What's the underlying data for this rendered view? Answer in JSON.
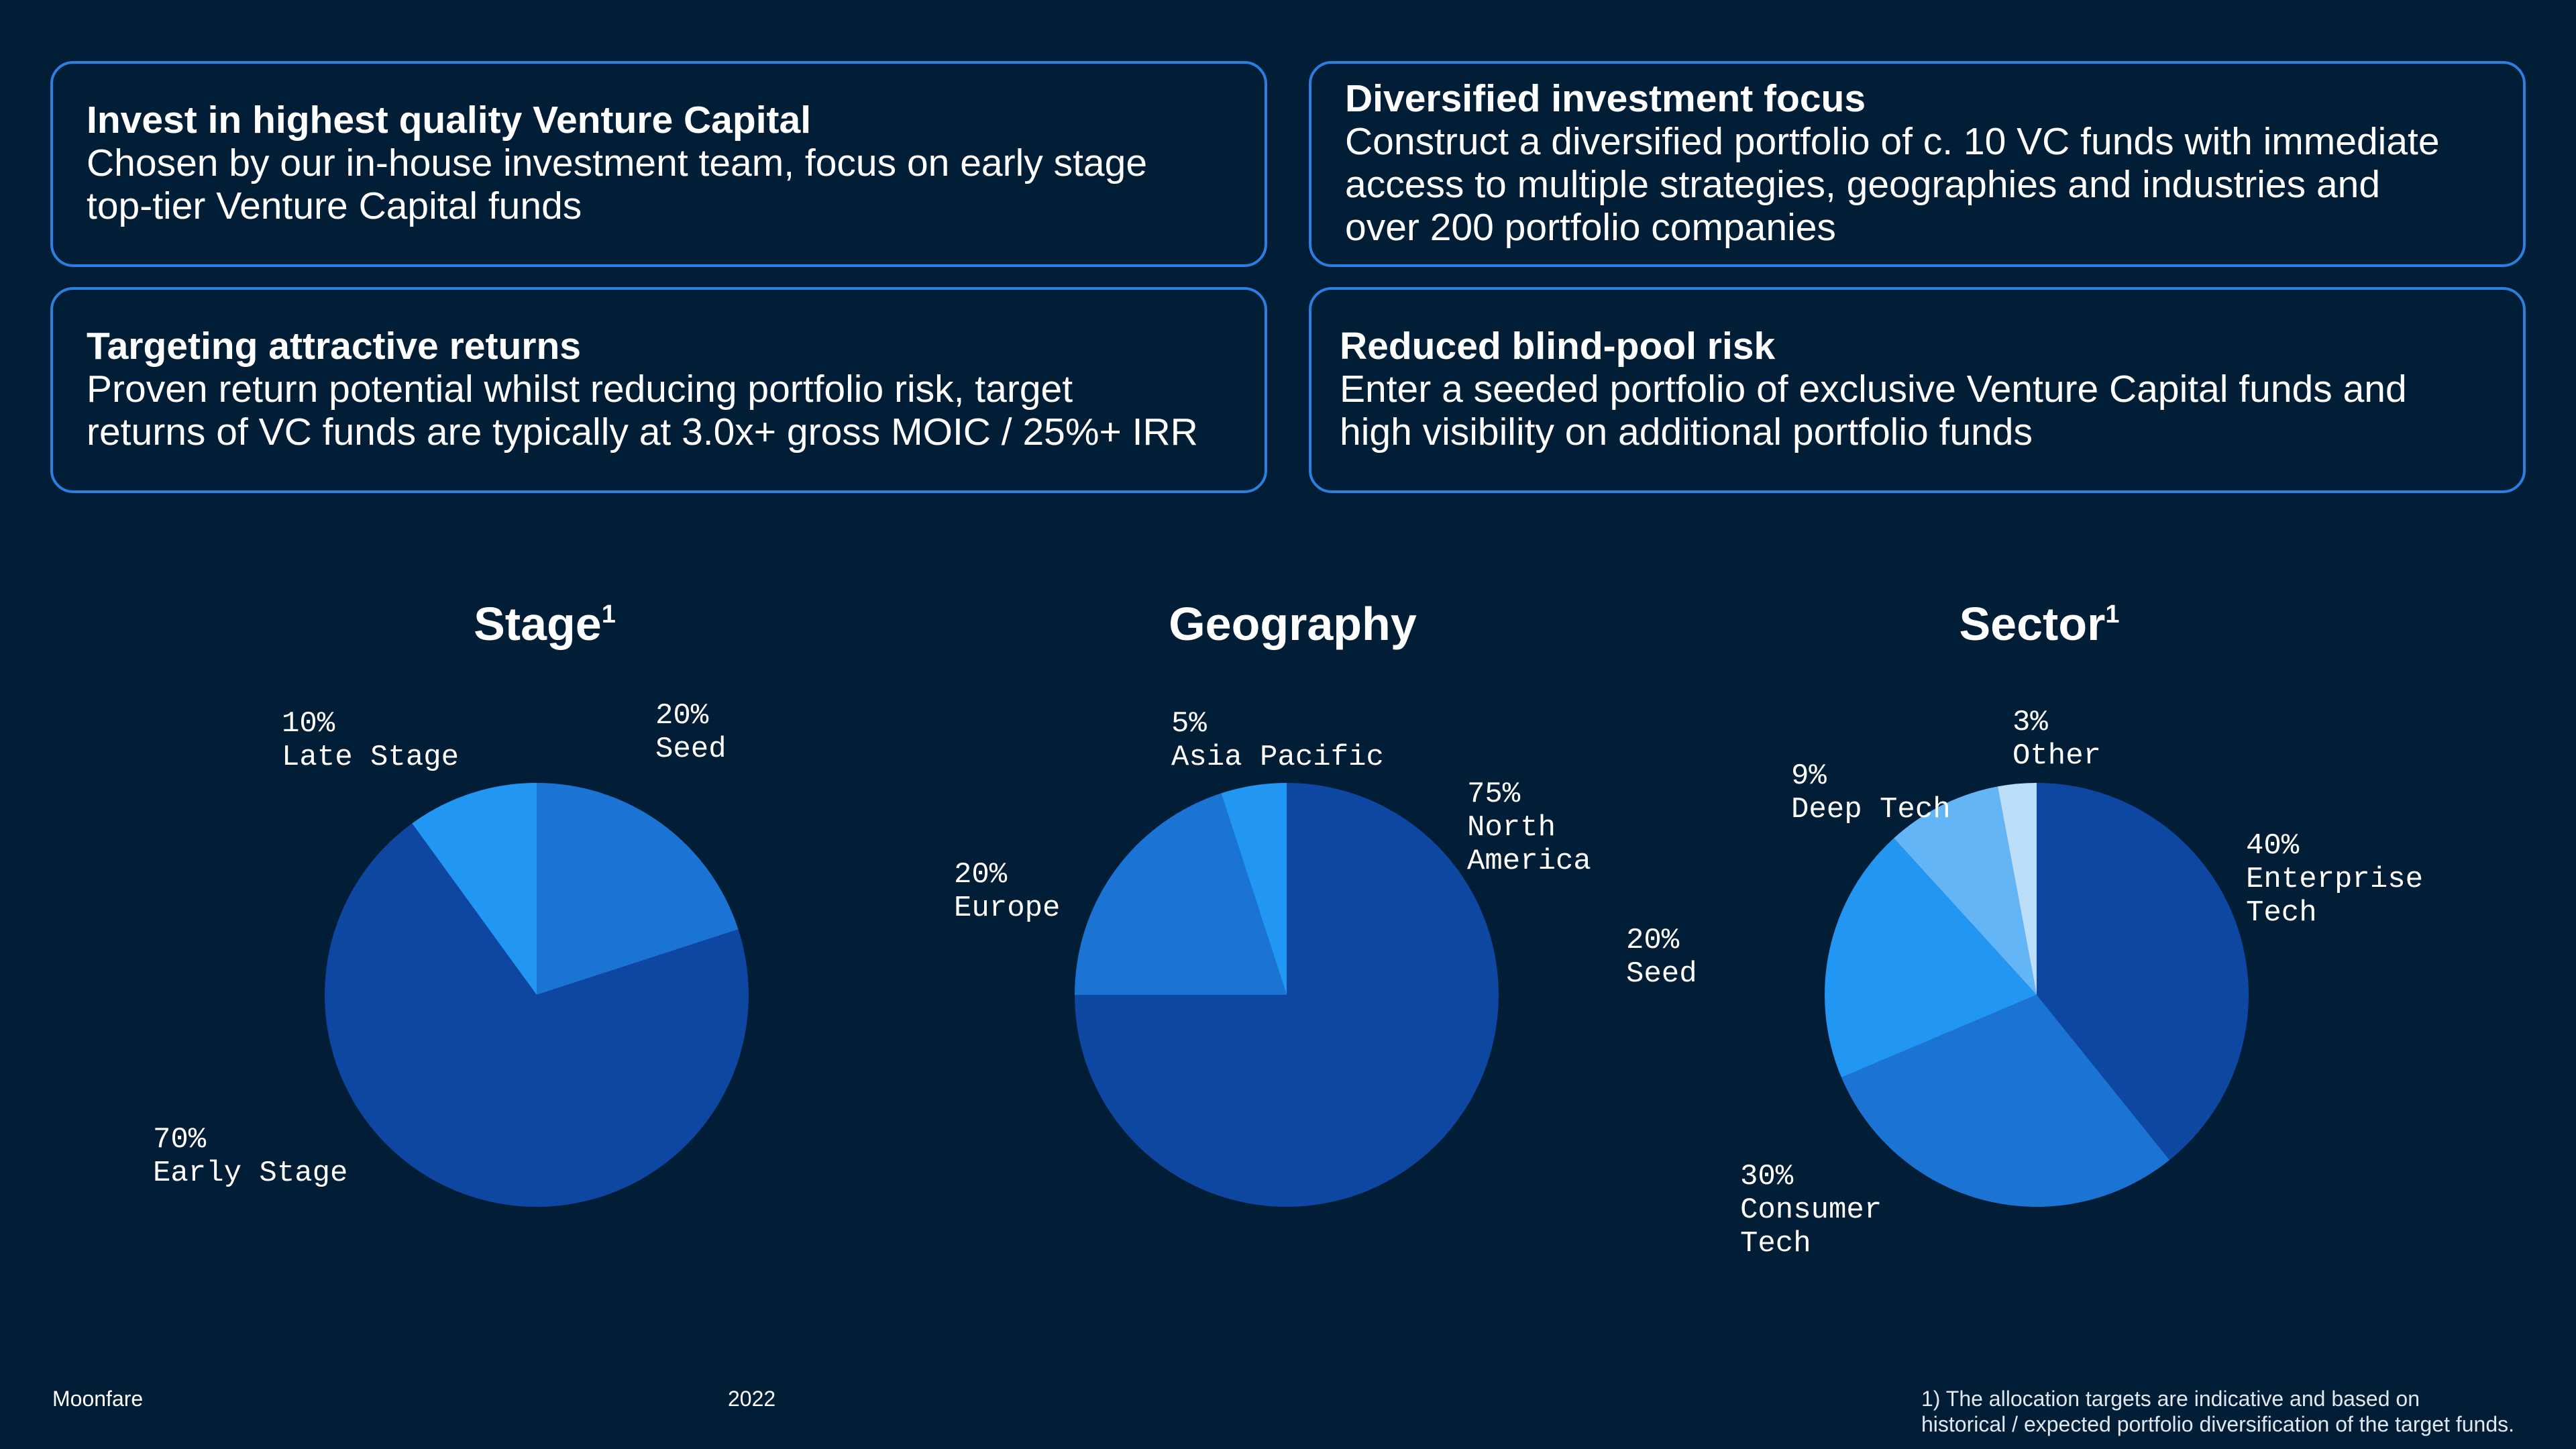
{
  "cards": [
    {
      "title": "Invest in highest quality Venture Capital",
      "body_lines": [
        "Chosen by our in-house investment team, focus on early stage",
        "top-tier Venture Capital funds"
      ]
    },
    {
      "title": "Diversified investment focus",
      "body_lines": [
        "Construct a diversified portfolio of c. 10 VC funds with immediate",
        "access to multiple strategies, geographies and industries and",
        "over 200 portfolio companies"
      ]
    },
    {
      "title": "Targeting attractive returns",
      "body_lines": [
        "Proven return potential whilst reducing portfolio risk, target",
        "returns of VC funds are typically at 3.0x+ gross MOIC / 25%+ IRR"
      ]
    },
    {
      "title": "Reduced blind-pool risk",
      "body_lines": [
        "Enter a seeded portfolio of exclusive Venture Capital funds and",
        "high visibility on additional portfolio funds"
      ]
    }
  ],
  "chart_data": [
    {
      "type": "pie",
      "title": "Stage",
      "title_footnote": "1",
      "slices": [
        {
          "label_lines": [
            "Seed"
          ],
          "value": 20,
          "pct": "20%",
          "color": "#1b74d4"
        },
        {
          "label_lines": [
            "Early Stage"
          ],
          "value": 70,
          "pct": "70%",
          "color": "#0d47a1"
        },
        {
          "label_lines": [
            "Late Stage"
          ],
          "value": 10,
          "pct": "10%",
          "color": "#2196f3"
        }
      ]
    },
    {
      "type": "pie",
      "title": "Geography",
      "title_footnote": "",
      "slices": [
        {
          "label_lines": [
            "North",
            "America"
          ],
          "value": 75,
          "pct": "75%",
          "color": "#0d47a1"
        },
        {
          "label_lines": [
            "Europe"
          ],
          "value": 20,
          "pct": "20%",
          "color": "#1b74d4"
        },
        {
          "label_lines": [
            "Asia Pacific"
          ],
          "value": 5,
          "pct": "5%",
          "color": "#2196f3"
        }
      ]
    },
    {
      "type": "pie",
      "title": "Sector",
      "title_footnote": "1",
      "slices": [
        {
          "label_lines": [
            "Enterprise",
            "Tech"
          ],
          "value": 40,
          "pct": "40%",
          "color": "#0d47a1"
        },
        {
          "label_lines": [
            "Consumer",
            "Tech"
          ],
          "value": 30,
          "pct": "30%",
          "color": "#1b74d4"
        },
        {
          "label_lines": [
            "Seed"
          ],
          "value": 20,
          "pct": "20%",
          "color": "#2196f3"
        },
        {
          "label_lines": [
            "Deep Tech"
          ],
          "value": 9,
          "pct": "9%",
          "color": "#64b5f6"
        },
        {
          "label_lines": [
            "Other"
          ],
          "value": 3,
          "pct": "3%",
          "color": "#bbdefb"
        }
      ]
    }
  ],
  "footer": {
    "brand": "Moonfare",
    "year": "2022",
    "note_lines": [
      "1) The allocation targets are indicative and based on",
      "historical / expected portfolio diversification of the target funds."
    ]
  }
}
